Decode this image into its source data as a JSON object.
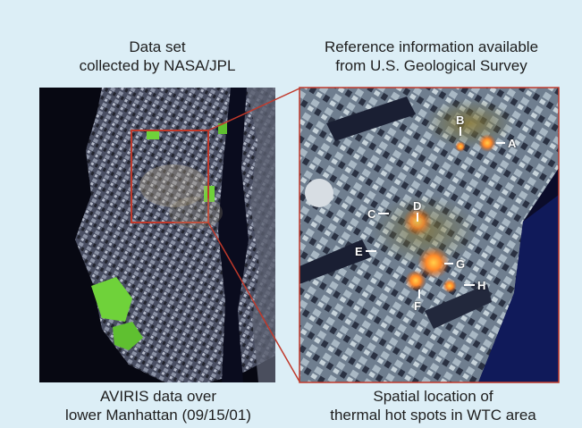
{
  "captions": {
    "left_top": [
      "Data set",
      "collected by NASA/JPL"
    ],
    "right_top": [
      "Reference information available",
      "from U.S. Geological Survey"
    ],
    "left_bottom": [
      "AVIRIS data over",
      "lower Manhattan (09/15/01)"
    ],
    "right_bottom": [
      "Spatial location of",
      "thermal hot spots in WTC area"
    ]
  },
  "hotspots": {
    "A": "A",
    "B": "B",
    "C": "C",
    "D": "D",
    "E": "E",
    "F": "F",
    "G": "G",
    "H": "H"
  },
  "colors": {
    "background": "#dceef6",
    "highlight_box": "#c0392b",
    "hotspot_orange": "#ff8a2a",
    "park_green": "#6fd23a",
    "water": "#0b0c2a"
  }
}
